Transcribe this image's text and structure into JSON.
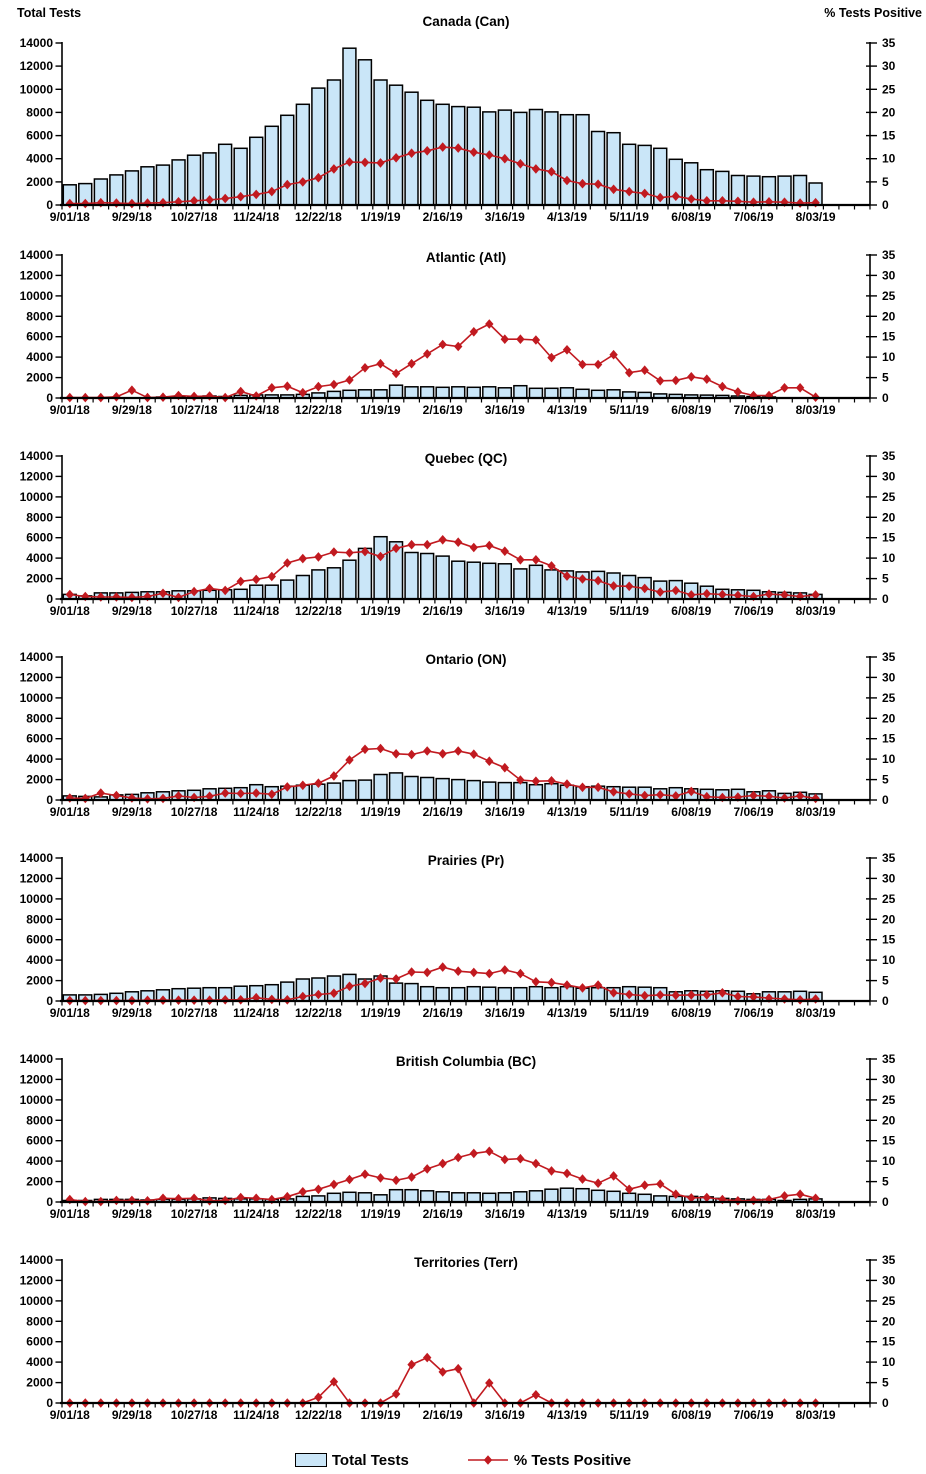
{
  "chart_data": {
    "type": "bar+line",
    "description": "Weekly influenza testing: total tests (bars, left axis) and percent tests positive (red diamond line, right axis) by region",
    "left_axis": {
      "title": "Total Tests",
      "min": 0,
      "max": 14000,
      "step": 2000,
      "tick_labels": [
        "0",
        "2000",
        "4000",
        "6000",
        "8000",
        "10000",
        "12000",
        "14000"
      ]
    },
    "right_axis": {
      "title": "% Tests Positive",
      "min": 0,
      "max": 35,
      "step": 5,
      "tick_labels": [
        "0",
        "5",
        "10",
        "15",
        "20",
        "25",
        "30",
        "35"
      ]
    },
    "x_tick_labels": [
      "9/01/18",
      "9/29/18",
      "10/27/18",
      "11/24/18",
      "12/22/18",
      "1/19/19",
      "2/16/19",
      "3/16/19",
      "4/13/19",
      "5/11/19",
      "6/08/19",
      "7/06/19",
      "8/03/19"
    ],
    "weeks": [
      "9/01/18",
      "9/08/18",
      "9/15/18",
      "9/22/18",
      "9/29/18",
      "10/06/18",
      "10/13/18",
      "10/20/18",
      "10/27/18",
      "11/03/18",
      "11/10/18",
      "11/17/18",
      "11/24/18",
      "12/01/18",
      "12/08/18",
      "12/15/18",
      "12/22/18",
      "12/29/18",
      "1/05/19",
      "1/12/19",
      "1/19/19",
      "1/26/19",
      "2/02/19",
      "2/09/19",
      "2/16/19",
      "2/23/19",
      "3/02/19",
      "3/09/19",
      "3/16/19",
      "3/23/19",
      "3/30/19",
      "4/06/19",
      "4/13/19",
      "4/20/19",
      "4/27/19",
      "5/04/19",
      "5/11/19",
      "5/18/19",
      "5/25/19",
      "6/01/19",
      "6/08/19",
      "6/15/19",
      "6/22/19",
      "6/29/19",
      "7/06/19",
      "7/13/19",
      "7/20/19",
      "7/27/19",
      "8/03/19"
    ],
    "legend": [
      {
        "label": "Total Tests",
        "type": "bar"
      },
      {
        "label": "% Tests Positive",
        "type": "line"
      }
    ],
    "colors": {
      "bar_fill": "#CAE6F8",
      "bar_stroke": "#000000",
      "line_color": "#C11A20",
      "text_color": "#000000"
    },
    "charts": [
      {
        "id": "can",
        "title": "Canada (Can)",
        "show_axis_titles": true,
        "tests": [
          1750,
          1850,
          2250,
          2600,
          2950,
          3300,
          3450,
          3900,
          4300,
          4500,
          5250,
          4900,
          5850,
          6800,
          7750,
          8700,
          10100,
          10800,
          13550,
          12550,
          10800,
          10350,
          9750,
          9050,
          8700,
          8500,
          8450,
          8050,
          8200,
          8000,
          8250,
          8050,
          7800,
          7800,
          6350,
          6250,
          5250,
          5150,
          4900,
          3950,
          3650,
          3050,
          2900,
          2550,
          2500,
          2450,
          2500,
          2550,
          1900
        ],
        "pct_positive": [
          0.3,
          0.3,
          0.5,
          0.4,
          0.3,
          0.4,
          0.5,
          0.7,
          0.9,
          1.1,
          1.4,
          1.8,
          2.3,
          2.9,
          4.4,
          5.0,
          5.9,
          7.8,
          9.3,
          9.2,
          9.1,
          10.2,
          11.2,
          11.7,
          12.5,
          12.3,
          11.4,
          10.8,
          10.0,
          8.9,
          7.8,
          7.2,
          5.3,
          4.6,
          4.5,
          3.4,
          2.9,
          2.5,
          1.6,
          1.9,
          1.3,
          0.9,
          0.9,
          0.8,
          0.6,
          0.7,
          0.6,
          0.4,
          0.5
        ]
      },
      {
        "id": "atl",
        "title": "Atlantic (Atl)",
        "show_axis_titles": false,
        "tests": [
          30,
          40,
          40,
          50,
          80,
          80,
          100,
          100,
          150,
          200,
          150,
          250,
          300,
          300,
          300,
          350,
          500,
          650,
          750,
          800,
          800,
          1250,
          1100,
          1100,
          1050,
          1100,
          1050,
          1100,
          1000,
          1200,
          950,
          950,
          1000,
          850,
          750,
          800,
          600,
          550,
          400,
          350,
          300,
          280,
          250,
          200,
          150,
          100,
          80,
          50,
          40
        ],
        "pct_positive": [
          0.1,
          0.1,
          0.1,
          0.3,
          1.9,
          0.1,
          0.2,
          0.6,
          0.4,
          0.5,
          0.1,
          1.6,
          0.5,
          2.5,
          2.9,
          1.3,
          2.8,
          3.3,
          4.4,
          7.4,
          8.4,
          6.0,
          8.4,
          10.8,
          13.1,
          12.6,
          16.2,
          18.1,
          14.4,
          14.4,
          14.2,
          9.9,
          11.8,
          8.2,
          8.2,
          10.6,
          6.2,
          6.8,
          4.2,
          4.3,
          5.2,
          4.6,
          2.8,
          1.5,
          0.6,
          0.6,
          2.5,
          2.5,
          0.2
        ]
      },
      {
        "id": "qc",
        "title": "Quebec (QC)",
        "show_axis_titles": false,
        "tests": [
          450,
          300,
          600,
          600,
          650,
          700,
          700,
          800,
          800,
          850,
          900,
          950,
          1350,
          1350,
          1850,
          2300,
          2850,
          3050,
          3800,
          4950,
          6100,
          5600,
          4550,
          4450,
          4200,
          3700,
          3600,
          3500,
          3450,
          2950,
          3300,
          2850,
          2750,
          2650,
          2700,
          2550,
          2300,
          2100,
          1750,
          1800,
          1550,
          1250,
          950,
          900,
          850,
          700,
          650,
          600,
          450
        ],
        "pct_positive": [
          1.1,
          0.6,
          0.5,
          0.5,
          0.4,
          0.6,
          1.4,
          0.4,
          1.8,
          2.6,
          2.1,
          4.3,
          4.8,
          5.5,
          8.8,
          9.9,
          10.3,
          11.5,
          11.3,
          11.6,
          10.4,
          12.4,
          13.3,
          13.3,
          14.5,
          13.9,
          12.6,
          13.1,
          11.7,
          9.6,
          9.6,
          8.1,
          5.6,
          4.9,
          4.5,
          3.2,
          3.1,
          2.6,
          1.7,
          2.1,
          1.0,
          1.3,
          1.1,
          0.9,
          0.6,
          1.2,
          1.0,
          0.6,
          1.0
        ]
      },
      {
        "id": "on",
        "title": "Ontario (ON)",
        "show_axis_titles": false,
        "tests": [
          400,
          350,
          300,
          500,
          550,
          700,
          800,
          900,
          950,
          1100,
          1150,
          1200,
          1500,
          1300,
          1350,
          1450,
          1550,
          1650,
          1900,
          1950,
          2500,
          2650,
          2300,
          2200,
          2100,
          2000,
          1900,
          1750,
          1700,
          1700,
          1500,
          1600,
          1450,
          1300,
          1350,
          1300,
          1250,
          1250,
          1100,
          1200,
          1100,
          1050,
          1000,
          1050,
          800,
          900,
          650,
          750,
          600
        ],
        "pct_positive": [
          0.5,
          0.4,
          1.7,
          1.1,
          0.5,
          0.3,
          0.4,
          1.0,
          0.6,
          0.9,
          1.7,
          1.6,
          1.7,
          1.4,
          3.2,
          3.6,
          4.1,
          5.9,
          9.8,
          12.4,
          12.6,
          11.3,
          11.1,
          12.0,
          11.3,
          12.0,
          11.2,
          9.5,
          7.9,
          4.9,
          4.6,
          4.7,
          3.9,
          3.1,
          3.1,
          2.0,
          1.5,
          1.1,
          1.3,
          1.0,
          2.1,
          0.8,
          0.6,
          0.7,
          1.1,
          0.9,
          0.5,
          1.0,
          0.4
        ]
      },
      {
        "id": "pr",
        "title": "Prairies (Pr)",
        "show_axis_titles": false,
        "tests": [
          600,
          600,
          650,
          750,
          900,
          1000,
          1100,
          1200,
          1250,
          1300,
          1300,
          1450,
          1500,
          1600,
          1850,
          2150,
          2250,
          2450,
          2600,
          2150,
          2450,
          1750,
          1700,
          1400,
          1300,
          1300,
          1400,
          1350,
          1300,
          1300,
          1400,
          1300,
          1400,
          1250,
          1300,
          1300,
          1400,
          1350,
          1300,
          900,
          1000,
          950,
          1000,
          950,
          700,
          900,
          900,
          950,
          850
        ],
        "pct_positive": [
          0.1,
          0.1,
          0.1,
          0.1,
          0.1,
          0.2,
          0.2,
          0.2,
          0.2,
          0.2,
          0.3,
          0.3,
          0.8,
          0.4,
          0.3,
          1.1,
          1.6,
          1.9,
          3.6,
          4.3,
          5.6,
          5.4,
          7.1,
          7.0,
          8.3,
          7.3,
          7.0,
          6.7,
          7.6,
          6.7,
          4.7,
          4.5,
          3.9,
          3.2,
          3.9,
          2.0,
          1.6,
          1.3,
          1.5,
          1.4,
          1.5,
          1.5,
          2.0,
          1.1,
          1.0,
          0.7,
          0.5,
          0.3,
          0.5
        ]
      },
      {
        "id": "bc",
        "title": "British Columbia (BC)",
        "show_axis_titles": false,
        "tests": [
          150,
          150,
          250,
          250,
          250,
          200,
          250,
          250,
          300,
          400,
          350,
          300,
          300,
          250,
          300,
          550,
          600,
          850,
          950,
          900,
          700,
          1200,
          1200,
          1100,
          1000,
          900,
          900,
          850,
          900,
          1000,
          1100,
          1250,
          1350,
          1300,
          1150,
          1050,
          850,
          750,
          600,
          550,
          550,
          500,
          350,
          300,
          250,
          250,
          150,
          250,
          300
        ],
        "pct_positive": [
          0.6,
          0.1,
          0.1,
          0.4,
          0.4,
          0.3,
          0.9,
          0.8,
          0.9,
          0.3,
          0.4,
          1.1,
          0.9,
          0.6,
          1.3,
          2.5,
          3.1,
          4.3,
          5.5,
          6.8,
          5.9,
          5.3,
          6.1,
          8.1,
          9.4,
          10.9,
          11.9,
          12.4,
          10.4,
          10.6,
          9.4,
          7.6,
          7.0,
          5.6,
          4.6,
          6.4,
          3.1,
          4.1,
          4.4,
          1.9,
          1.0,
          1.1,
          0.6,
          0.3,
          0.4,
          0.6,
          1.5,
          1.9,
          0.9
        ]
      },
      {
        "id": "terr",
        "title": "Territories (Terr)",
        "show_axis_titles": false,
        "tests": [
          10,
          10,
          10,
          10,
          10,
          10,
          10,
          10,
          10,
          10,
          10,
          10,
          10,
          10,
          10,
          20,
          20,
          20,
          10,
          10,
          10,
          20,
          30,
          30,
          30,
          30,
          20,
          20,
          20,
          10,
          10,
          10,
          10,
          10,
          10,
          10,
          10,
          10,
          10,
          10,
          10,
          10,
          10,
          10,
          10,
          10,
          10,
          10,
          10
        ],
        "pct_positive": [
          0,
          0,
          0,
          0,
          0,
          0,
          0,
          0,
          0,
          0,
          0,
          0,
          0,
          0,
          0,
          0,
          1.4,
          5.2,
          0,
          0,
          0,
          2.2,
          9.4,
          11.1,
          7.6,
          8.4,
          0,
          4.9,
          0,
          0,
          2.0,
          0,
          0,
          0,
          0,
          0,
          0,
          0,
          0,
          0,
          0,
          0,
          0,
          0,
          0,
          0,
          0,
          0,
          0
        ]
      }
    ]
  }
}
